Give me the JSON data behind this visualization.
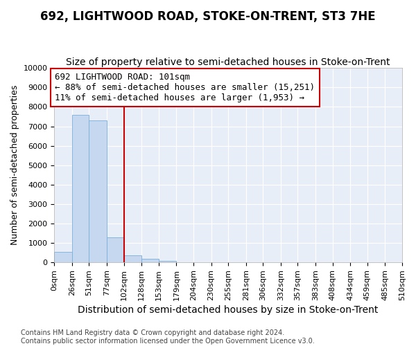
{
  "title": "692, LIGHTWOOD ROAD, STOKE-ON-TRENT, ST3 7HE",
  "subtitle": "Size of property relative to semi-detached houses in Stoke-on-Trent",
  "xlabel": "Distribution of semi-detached houses by size in Stoke-on-Trent",
  "ylabel": "Number of semi-detached properties",
  "footnote": "Contains HM Land Registry data © Crown copyright and database right 2024.\nContains public sector information licensed under the Open Government Licence v3.0.",
  "bin_edges": [
    0,
    26,
    51,
    77,
    102,
    128,
    153,
    179,
    204,
    230,
    255,
    281,
    306,
    332,
    357,
    383,
    408,
    434,
    459,
    485,
    510
  ],
  "bar_heights": [
    550,
    7600,
    7300,
    1300,
    350,
    200,
    100,
    0,
    0,
    0,
    0,
    0,
    0,
    0,
    0,
    0,
    0,
    0,
    0,
    0
  ],
  "bar_color": "#c5d8f0",
  "bar_edge_color": "#7aaedc",
  "property_line_x": 102,
  "property_line_color": "#cc0000",
  "annotation_text": "692 LIGHTWOOD ROAD: 101sqm\n← 88% of semi-detached houses are smaller (15,251)\n11% of semi-detached houses are larger (1,953) →",
  "annotation_box_facecolor": "#ffffff",
  "annotation_box_edgecolor": "#cc0000",
  "ylim": [
    0,
    10000
  ],
  "yticks": [
    0,
    1000,
    2000,
    3000,
    4000,
    5000,
    6000,
    7000,
    8000,
    9000,
    10000
  ],
  "tick_labels": [
    "0sqm",
    "26sqm",
    "51sqm",
    "77sqm",
    "102sqm",
    "128sqm",
    "153sqm",
    "179sqm",
    "204sqm",
    "230sqm",
    "255sqm",
    "281sqm",
    "306sqm",
    "332sqm",
    "357sqm",
    "383sqm",
    "408sqm",
    "434sqm",
    "459sqm",
    "485sqm",
    "510sqm"
  ],
  "bg_color": "#e8eef8",
  "grid_color": "#ffffff",
  "title_fontsize": 12,
  "subtitle_fontsize": 10,
  "xlabel_fontsize": 10,
  "ylabel_fontsize": 9,
  "tick_fontsize": 8,
  "annotation_fontsize": 9,
  "footnote_fontsize": 7
}
